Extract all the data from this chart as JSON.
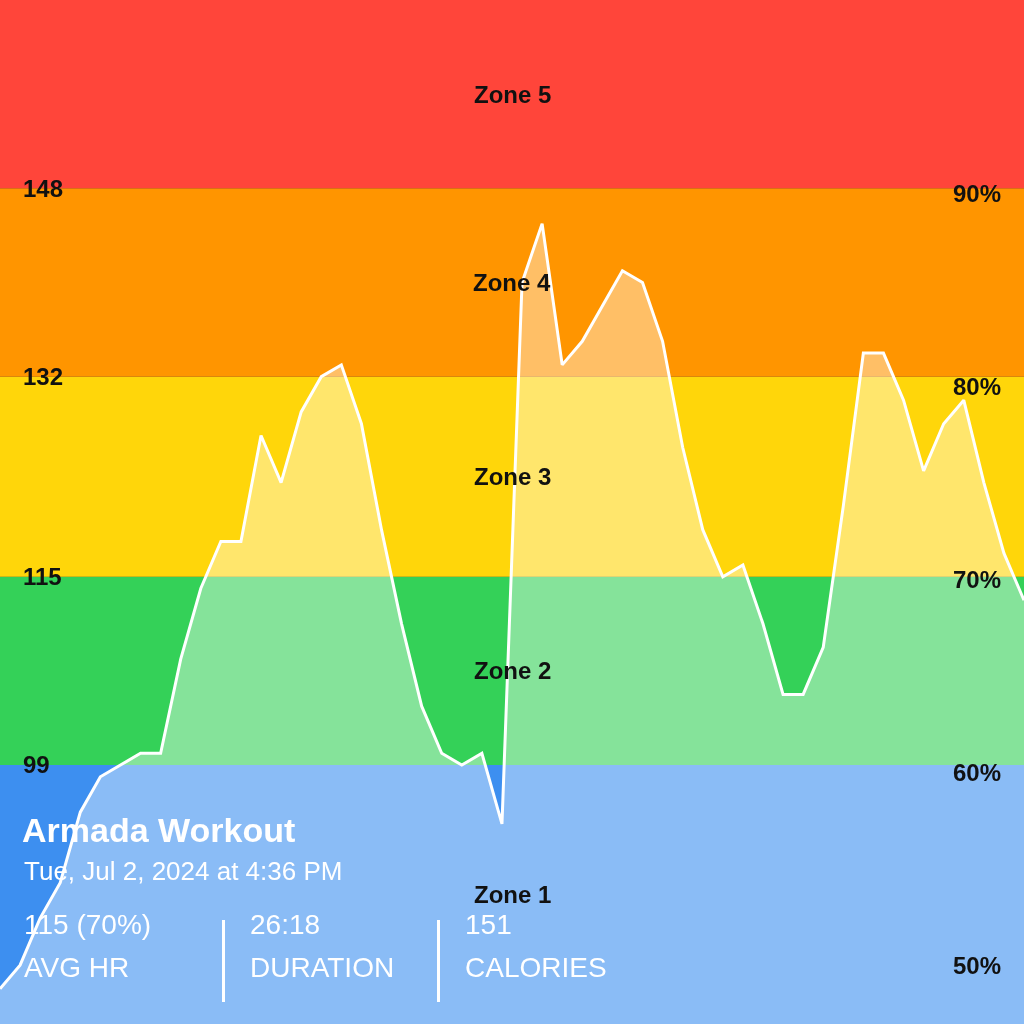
{
  "chart_data": {
    "type": "area",
    "title": "Armada Workout",
    "subtitle": "Tue, Jul 2, 2024 at 4:36 PM",
    "annotations": [
      "115 (70%)",
      "AVG HR",
      "26:18",
      "DURATION",
      "151",
      "CALORIES"
    ],
    "categories": [
      null,
      null,
      null,
      null,
      null,
      null,
      null,
      null,
      null,
      null,
      null,
      null,
      null,
      null,
      null,
      null,
      null,
      null,
      null,
      null,
      null,
      null,
      null,
      null,
      null,
      null,
      null,
      null,
      null,
      null,
      null,
      null,
      null,
      null,
      null,
      null,
      null,
      null,
      null,
      null,
      null,
      null,
      null,
      null,
      null,
      null,
      null,
      null,
      null,
      null,
      null,
      null
    ],
    "series": [
      {
        "color": "#ffffff",
        "values": [
          80,
          82,
          86,
          89,
          95,
          98,
          99,
          100,
          100,
          108,
          114,
          118,
          118,
          127,
          123,
          129,
          132,
          133,
          128,
          119,
          111,
          104,
          100,
          99,
          100,
          94,
          140,
          145,
          133,
          135,
          138,
          141,
          140,
          135,
          126,
          119,
          115,
          116,
          111,
          105,
          105,
          109,
          121,
          134,
          134,
          130,
          124,
          128,
          130,
          123,
          117,
          113
        ]
      }
    ],
    "ylim": [
      77,
      164
    ],
    "yticks": [
      99,
      115,
      132,
      148
    ],
    "y2lim": [
      47,
      100
    ],
    "y2ticks": [
      {
        "value": 50,
        "label": "50%"
      },
      {
        "value": 60,
        "label": "60%"
      },
      {
        "value": 70,
        "label": "70%"
      },
      {
        "value": 80,
        "label": "80%"
      },
      {
        "value": 90,
        "label": "90%"
      }
    ],
    "bands": [
      {
        "axis": "y",
        "from": 77,
        "to": 99,
        "label": "Zone 1",
        "color": "#3d8ff0"
      },
      {
        "axis": "y",
        "from": 99,
        "to": 115,
        "label": "Zone 2",
        "color": "#34d158"
      },
      {
        "axis": "y",
        "from": 115,
        "to": 132,
        "label": "Zone 3",
        "color": "#ffd60a"
      },
      {
        "axis": "y",
        "from": 132,
        "to": 148,
        "label": "Zone 4",
        "color": "#ff9500"
      },
      {
        "axis": "y",
        "from": 148,
        "to": 164,
        "label": "Zone 5",
        "color": "#ff453a"
      }
    ],
    "grid": false,
    "marker": "none",
    "line_style": "solid",
    "tick_labels": "y"
  }
}
